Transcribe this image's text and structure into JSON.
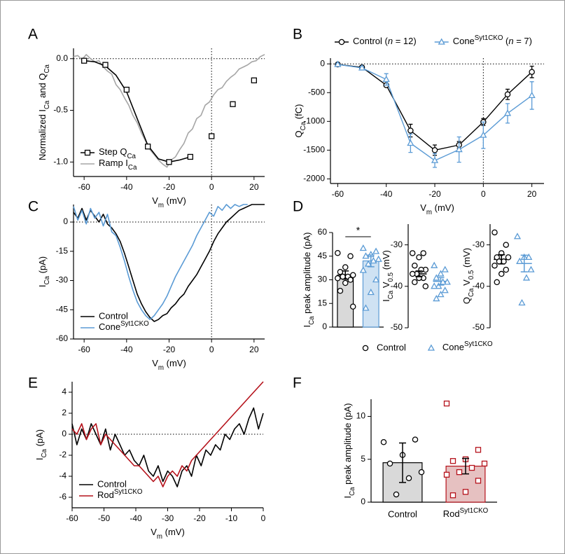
{
  "chart_data": [
    {
      "type": "line",
      "label": "A",
      "xlabel": [
        "V",
        {
          "sub": "m"
        },
        " (mV)"
      ],
      "ylabel": [
        "Normalized I",
        {
          "sub": "Ca"
        },
        " and Q",
        {
          "sub": "Ca"
        }
      ],
      "xlim": [
        -65,
        25
      ],
      "xticks": [
        -60,
        -40,
        -20,
        0,
        20
      ],
      "ylim": [
        -1.14,
        0.1
      ],
      "yticks": [
        {
          "value": 0,
          "label": "0.0"
        },
        -0.5,
        {
          "value": -1,
          "label": "-1.0"
        }
      ],
      "reference_lines": {
        "x": 0,
        "y": 0
      },
      "legend": "lower left",
      "series": [
        {
          "name": [
            "Ramp I",
            {
              "sub": "Ca"
            }
          ],
          "color": "#a6a6a6",
          "x": [
            -65,
            -63,
            -61,
            -59,
            -57,
            -55,
            -53,
            -51,
            -49,
            -47,
            -45,
            -43,
            -41,
            -39,
            -37,
            -35,
            -33,
            -31,
            -29,
            -27,
            -25,
            -23,
            -21,
            -19,
            -17,
            -15,
            -13,
            -11,
            -9,
            -7,
            -5,
            -3,
            -1,
            1,
            3,
            5,
            7,
            9,
            11,
            13,
            15,
            17,
            19,
            21,
            23,
            25
          ],
          "values": [
            0.02,
            0.03,
            -0.01,
            0.04,
            0.0,
            -0.03,
            -0.02,
            -0.08,
            -0.12,
            -0.15,
            -0.25,
            -0.3,
            -0.38,
            -0.45,
            -0.55,
            -0.62,
            -0.72,
            -0.8,
            -0.88,
            -0.93,
            -0.98,
            -1.02,
            -1.05,
            -0.98,
            -0.95,
            -0.88,
            -0.82,
            -0.72,
            -0.68,
            -0.58,
            -0.55,
            -0.45,
            -0.42,
            -0.35,
            -0.3,
            -0.28,
            -0.22,
            -0.18,
            -0.15,
            -0.1,
            -0.08,
            -0.06,
            -0.03,
            -0.02,
            0.02,
            0.04
          ]
        },
        {
          "color": "#000000",
          "x": [
            -60,
            -55,
            -50,
            -45,
            -40,
            -35,
            -30,
            -25,
            -20,
            -15,
            -10
          ],
          "values": [
            -0.02,
            -0.03,
            -0.07,
            -0.16,
            -0.32,
            -0.58,
            -0.84,
            -0.97,
            -1.0,
            -0.98,
            -0.95
          ]
        },
        {
          "name": [
            "Step Q",
            {
              "sub": "Ca"
            }
          ],
          "color": "#000000",
          "marker": "square",
          "line": false,
          "x": [
            -60,
            -50,
            -40,
            -30,
            -20,
            -10,
            0,
            10,
            20
          ],
          "values": [
            -0.02,
            -0.06,
            -0.3,
            -0.85,
            -1.0,
            -0.95,
            -0.75,
            -0.44,
            -0.21
          ]
        }
      ]
    },
    {
      "type": "line",
      "label": "B",
      "xlabel": [
        "V",
        {
          "sub": "m"
        },
        " (mV)"
      ],
      "ylabel": [
        "Q",
        {
          "sub": "Ca"
        },
        " (fC)"
      ],
      "xlim": [
        -63,
        25
      ],
      "xticks": [
        -60,
        -40,
        -20,
        0,
        20
      ],
      "ylim": [
        -2080,
        100
      ],
      "yticks": [
        0,
        -500,
        -1000,
        -1500,
        -2000
      ],
      "reference_lines": {
        "x": 0,
        "y": 0
      },
      "legend": "top",
      "series": [
        {
          "name": [
            "Control (",
            {
              "i": "n"
            },
            " = 12)"
          ],
          "color": "#000000",
          "marker": "circle",
          "x": [
            -60,
            -50,
            -40,
            -30,
            -20,
            -10,
            0,
            10,
            20
          ],
          "values": [
            -10,
            -60,
            -370,
            -1160,
            -1500,
            -1410,
            -1010,
            -530,
            -140
          ],
          "errors": [
            20,
            20,
            30,
            110,
            90,
            60,
            60,
            90,
            100
          ]
        },
        {
          "name": [
            "Cone",
            {
              "sup": "Syt1CKO"
            },
            " (",
            {
              "i": "n"
            },
            " = 7)"
          ],
          "color": "#5b9bd5",
          "marker": "triangle",
          "x": [
            -60,
            -50,
            -40,
            -30,
            -20,
            -10,
            0,
            10,
            20
          ],
          "values": [
            -10,
            -70,
            -270,
            -1380,
            -1680,
            -1490,
            -1240,
            -860,
            -550
          ],
          "errors": [
            20,
            20,
            100,
            160,
            120,
            220,
            230,
            170,
            240
          ]
        }
      ]
    },
    {
      "type": "line",
      "label": "C",
      "xlabel": [
        "V",
        {
          "sub": "m"
        },
        " (mV)"
      ],
      "ylabel": [
        "I",
        {
          "sub": "Ca"
        },
        " (pA)"
      ],
      "xlim": [
        -65,
        25
      ],
      "xticks": [
        -60,
        -40,
        -20,
        0,
        20
      ],
      "ylim": [
        -60,
        9
      ],
      "yticks": [
        0,
        -15,
        -30,
        -45,
        -60
      ],
      "reference_lines": {
        "x": 0,
        "y": 0
      },
      "legend": "lower left",
      "series": [
        {
          "name": "Control",
          "color": "#000000",
          "x": [
            -65,
            -63,
            -61,
            -59,
            -57,
            -55,
            -53,
            -51,
            -49,
            -47,
            -45,
            -43,
            -41,
            -39,
            -37,
            -35,
            -33,
            -31,
            -29,
            -27,
            -25,
            -23,
            -21,
            -19,
            -17,
            -15,
            -13,
            -11,
            -9,
            -7,
            -5,
            -3,
            -1,
            1,
            3,
            5,
            7,
            9,
            11,
            13,
            15,
            17,
            19,
            21,
            23,
            25
          ],
          "values": [
            5,
            2,
            7,
            1,
            6,
            3,
            0,
            4,
            -1,
            -3,
            -6,
            -10,
            -16,
            -23,
            -30,
            -37,
            -42,
            -46,
            -49,
            -51,
            -50,
            -48,
            -47,
            -44,
            -42,
            -39,
            -37,
            -33,
            -30,
            -27,
            -23,
            -19,
            -15,
            -10,
            -6,
            -3,
            0,
            2,
            4,
            6,
            7,
            8,
            9,
            9,
            9,
            9
          ]
        },
        {
          "name": [
            "Cone",
            {
              "sup": "Syt1CKO"
            }
          ],
          "color": "#5b9bd5",
          "x": [
            -65,
            -63,
            -61,
            -59,
            -57,
            -55,
            -53,
            -51,
            -49,
            -47,
            -45,
            -43,
            -41,
            -39,
            -37,
            -35,
            -33,
            -31,
            -29,
            -27,
            -25,
            -23,
            -21,
            -19,
            -17,
            -15,
            -13,
            -11,
            -9,
            -7,
            -5,
            -3,
            -1,
            1,
            3,
            5,
            7,
            9,
            11,
            13,
            15,
            17
          ],
          "values": [
            8,
            1,
            6,
            -1,
            7,
            2,
            5,
            -2,
            4,
            -5,
            -7,
            -13,
            -20,
            -28,
            -35,
            -41,
            -45,
            -48,
            -50,
            -48,
            -45,
            -42,
            -38,
            -33,
            -28,
            -24,
            -20,
            -16,
            -12,
            -7,
            -3,
            1,
            5,
            3,
            8,
            6,
            9,
            7,
            9,
            8,
            9,
            9
          ]
        }
      ]
    },
    {
      "type": "bar",
      "label": "D",
      "ylabel": [
        "I",
        {
          "sub": "Ca"
        },
        " peak amplitude (pA)"
      ],
      "ylim": [
        0,
        60
      ],
      "yticks": [
        0,
        15,
        30,
        45,
        60
      ],
      "categories": [
        null,
        null
      ],
      "values": [
        33,
        42
      ],
      "errors": [
        2.6,
        3.7
      ],
      "colors": [
        "#d9d9d9",
        "#cfe2f3"
      ],
      "edge_colors": [
        "#000000",
        "#5b9bd5"
      ],
      "markers": [
        "circle",
        "triangle"
      ],
      "points": [
        [
          47,
          45,
          38,
          35,
          33,
          32,
          32,
          31,
          30,
          28,
          23,
          13
        ],
        [
          50,
          48,
          46,
          45,
          43,
          42,
          40,
          36,
          30,
          22,
          12
        ]
      ],
      "annotation": "*",
      "legend": "bottom",
      "legend_entries": [
        {
          "name": "Control",
          "marker": "circle",
          "color": "#000000"
        },
        {
          "name": [
            "Cone",
            {
              "sup": "Syt1CKO"
            }
          ],
          "marker": "triangle",
          "color": "#5b9bd5"
        }
      ]
    },
    {
      "type": "strip",
      "ylabel": [
        "I",
        {
          "sub": "Ca"
        },
        " V",
        {
          "sub": "0.5"
        },
        " (mV)"
      ],
      "ylim": [
        -50,
        -25
      ],
      "yticks": [
        -30,
        -40,
        -50
      ],
      "categories": [
        null,
        null
      ],
      "values": [
        -37,
        -38.8
      ],
      "errors": [
        0.7,
        0.9
      ],
      "edge_colors": [
        "#000000",
        "#5b9bd5"
      ],
      "markers": [
        "circle",
        "triangle"
      ],
      "points": [
        [
          -32,
          -32,
          -33,
          -35,
          -36,
          -36,
          -37,
          -37,
          -38,
          -38,
          -39,
          -40
        ],
        [
          -35,
          -36,
          -37,
          -38,
          -39,
          -39,
          -40,
          -40,
          -41,
          -42,
          -43
        ]
      ]
    },
    {
      "type": "strip",
      "ylabel": [
        "Q",
        {
          "sub": "Ca"
        },
        " V",
        {
          "sub": "0.5"
        },
        " (mV)"
      ],
      "ylim": [
        -50,
        -25
      ],
      "yticks": [
        -30,
        -40,
        -50
      ],
      "categories": [
        null,
        null
      ],
      "values": [
        -33.5,
        -34.5
      ],
      "errors": [
        1.1,
        2.0
      ],
      "edge_colors": [
        "#000000",
        "#5b9bd5"
      ],
      "markers": [
        "circle",
        "triangle"
      ],
      "points": [
        [
          -27,
          -30,
          -32,
          -33,
          -33,
          -34,
          -34,
          -35,
          -36,
          -37,
          -39
        ],
        [
          -28,
          -33,
          -33,
          -34,
          -36,
          -38,
          -44
        ]
      ]
    },
    {
      "type": "line",
      "label": "E",
      "xlabel": [
        "V",
        {
          "sub": "m"
        },
        " (mV)"
      ],
      "ylabel": [
        "I",
        {
          "sub": "Ca"
        },
        " (pA)"
      ],
      "xlim": [
        -60,
        0
      ],
      "xticks": [
        -60,
        -50,
        -40,
        -30,
        -20,
        -10,
        0
      ],
      "ylim": [
        -7,
        5
      ],
      "yticks": [
        4,
        2,
        0,
        -2,
        -4,
        -6
      ],
      "reference_lines": {
        "y": 0
      },
      "legend": "lower left",
      "series": [
        {
          "name": "Control",
          "color": "#000000",
          "x": [
            -60,
            -58.5,
            -57,
            -55.5,
            -54,
            -52.5,
            -51,
            -49.5,
            -48,
            -46.5,
            -45,
            -43.5,
            -42,
            -40.5,
            -39,
            -37.5,
            -36,
            -34.5,
            -33,
            -31.5,
            -30,
            -28.5,
            -27,
            -25.5,
            -24,
            -22.5,
            -21,
            -19.5,
            -18,
            -16.5,
            -15,
            -13.5,
            -12,
            -10.5,
            -9,
            -7.5,
            -6,
            -4.5,
            -3,
            -1.5,
            0
          ],
          "values": [
            1,
            -1,
            0.5,
            -0.5,
            1,
            0,
            -1,
            0.5,
            -1.5,
            0,
            -1,
            -2,
            -1.5,
            -2.5,
            -3,
            -2,
            -3.5,
            -4,
            -3,
            -4.5,
            -3.5,
            -4,
            -5,
            -3.5,
            -3,
            -4,
            -2,
            -3,
            -1.5,
            -2,
            -1,
            -1.5,
            0,
            -0.5,
            0.5,
            1,
            0,
            1.5,
            2.5,
            0.5,
            2
          ]
        },
        {
          "name": [
            "Rod",
            {
              "sup": "Syt1CKO"
            }
          ],
          "color": "#b5121b",
          "x": [
            -60,
            -58.5,
            -57,
            -55.5,
            -54,
            -52.5,
            -51,
            -49.5,
            -48,
            -46.5,
            -45,
            -43.5,
            -42,
            -40.5,
            -39,
            -37.5,
            -36,
            -34.5,
            -33,
            -31.5,
            -30,
            -28.5,
            -27,
            -25.5,
            -24,
            -22.5,
            -21,
            -19.5,
            -18,
            -16.5,
            -15,
            -13.5,
            -12,
            -10.5,
            -9,
            -7.5,
            -6,
            -4.5,
            -3,
            -1.5,
            0
          ],
          "values": [
            0.5,
            0,
            1,
            -0.5,
            0.5,
            1,
            -1,
            0,
            -0.5,
            -1,
            -1.5,
            -2,
            -2.5,
            -3,
            -3,
            -3.5,
            -4,
            -4.5,
            -4,
            -5,
            -4,
            -3.5,
            -4,
            -3,
            -3.5,
            -2.5,
            -2,
            -1.5,
            -1,
            -0.5,
            0,
            0.5,
            1,
            1.5,
            2,
            2.5,
            3,
            3.5,
            4,
            4.5,
            5
          ]
        }
      ]
    },
    {
      "type": "bar",
      "label": "F",
      "ylabel": [
        "I",
        {
          "sub": "Ca"
        },
        " peak amplitude (pA)"
      ],
      "ylim": [
        0,
        12
      ],
      "yticks": [
        0,
        5,
        10
      ],
      "categories": [
        "Control",
        [
          "Rod",
          {
            "sup": "Syt1CKO"
          }
        ]
      ],
      "values": [
        4.6,
        4.2
      ],
      "errors": [
        2.3,
        0.9
      ],
      "colors": [
        "#d9d9d9",
        "#e6c1c1"
      ],
      "edge_colors": [
        "#000000",
        "#b5121b"
      ],
      "markers": [
        "circle",
        "square"
      ],
      "points": [
        [
          7,
          7.3,
          5.5,
          4.5,
          3.5,
          2.8,
          0.9
        ],
        [
          11.5,
          6.1,
          5,
          4.8,
          4.5,
          4,
          3.5,
          3.2,
          2.5,
          1.2,
          0.8
        ]
      ]
    }
  ]
}
